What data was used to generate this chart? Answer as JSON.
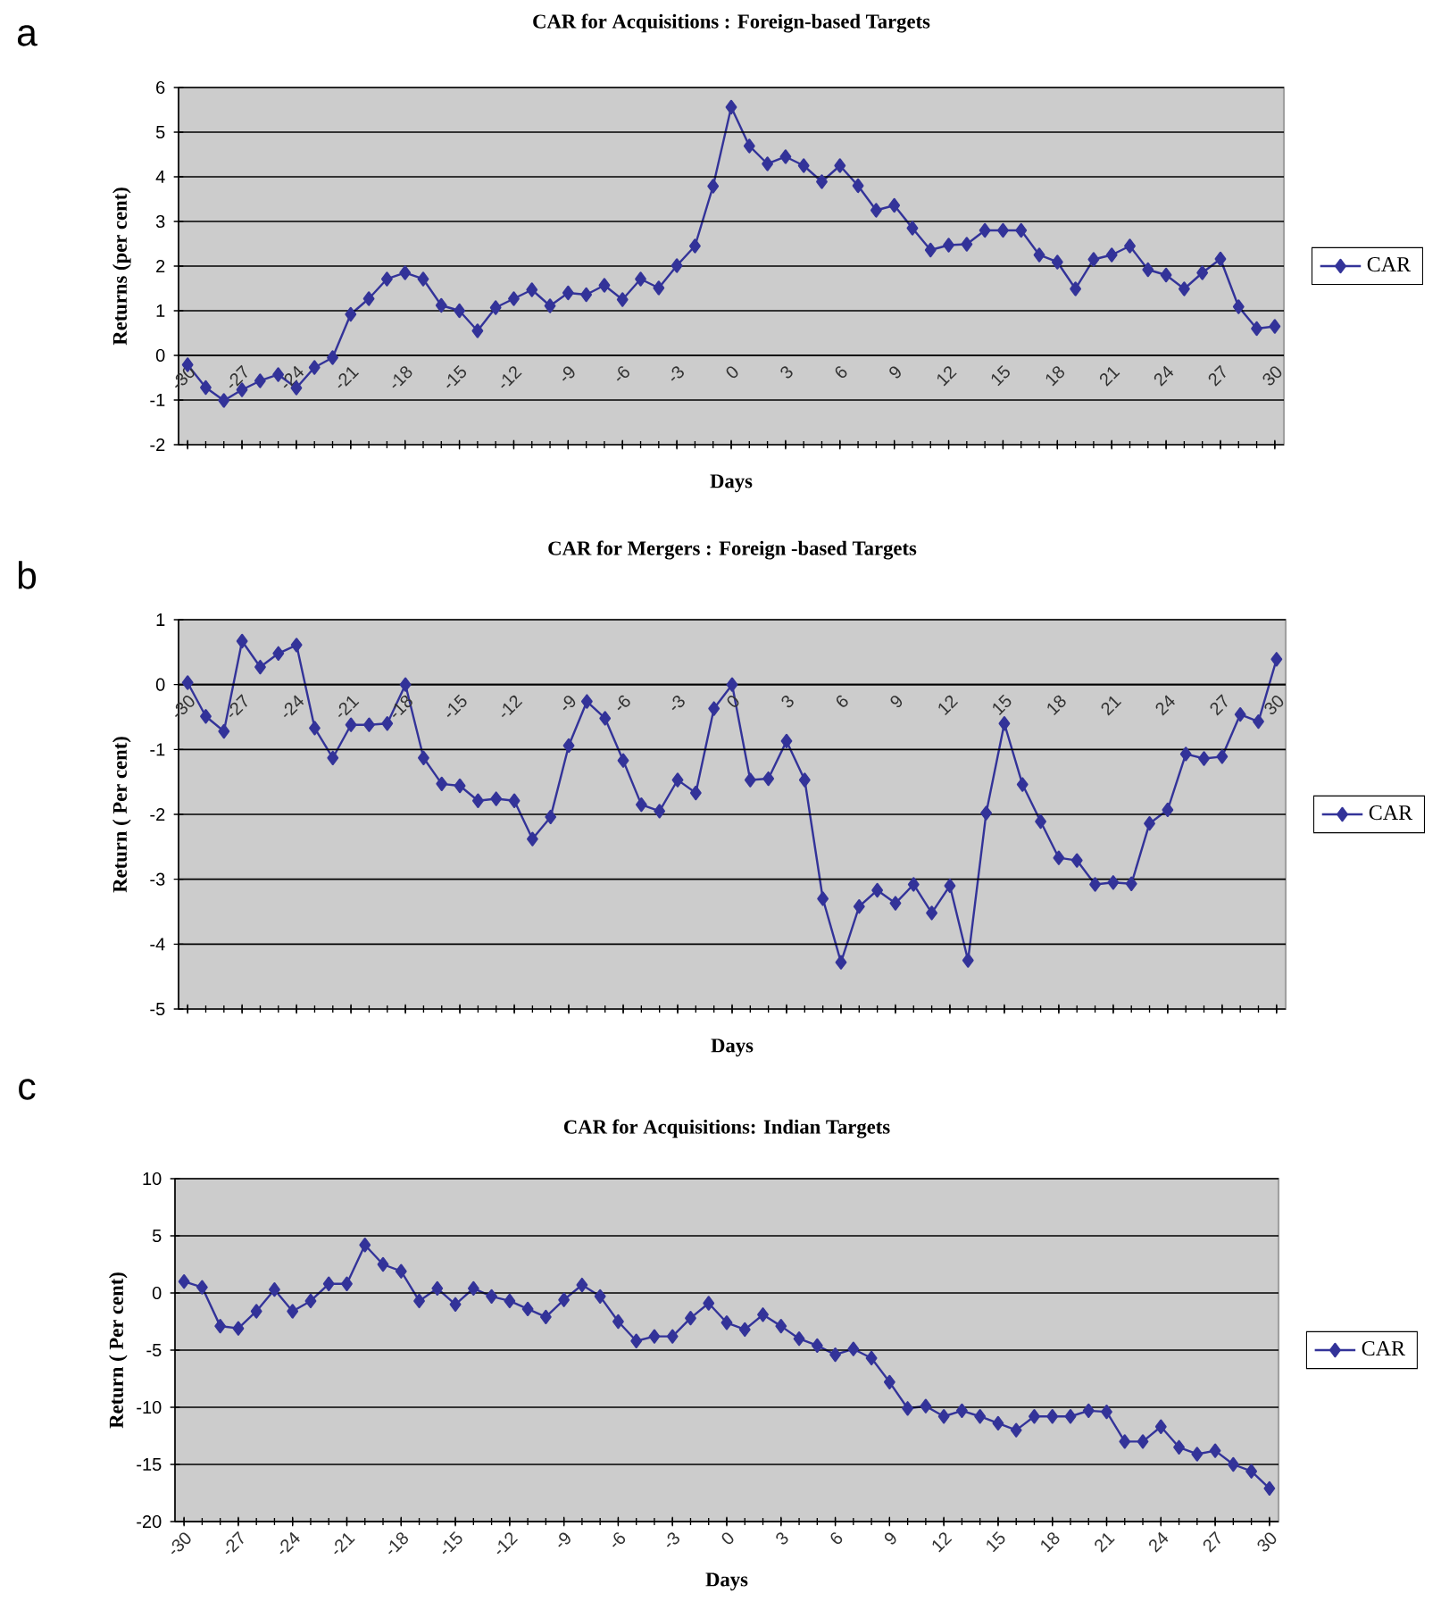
{
  "chart_data": [
    {
      "type": "line",
      "title": "CAR for Acquisitions : Foreign-based Targets",
      "xlabel": "Days",
      "ylabel": "Returns (per cent)",
      "annotations": [
        "a"
      ],
      "categories": [
        "-30",
        null,
        null,
        "-27",
        null,
        null,
        "-24",
        null,
        null,
        "-21",
        null,
        null,
        "-18",
        null,
        null,
        "-15",
        null,
        null,
        "-12",
        null,
        null,
        "-9",
        null,
        null,
        "-6",
        null,
        null,
        "-3",
        null,
        null,
        "0",
        null,
        null,
        "3",
        null,
        null,
        "6",
        null,
        null,
        "9",
        null,
        null,
        "12",
        null,
        null,
        "15",
        null,
        null,
        "18",
        null,
        null,
        "21",
        null,
        null,
        "24",
        null,
        null,
        "27",
        null,
        null,
        "30"
      ],
      "series": [
        {
          "name": "CAR",
          "color": "#333399",
          "values": [
            -0.21,
            -0.72,
            -1.01,
            -0.77,
            -0.57,
            -0.43,
            -0.73,
            -0.27,
            -0.05,
            0.92,
            1.27,
            1.71,
            1.85,
            1.71,
            1.12,
            1.0,
            0.55,
            1.07,
            1.27,
            1.47,
            1.11,
            1.4,
            1.36,
            1.57,
            1.25,
            1.71,
            1.51,
            2.01,
            2.45,
            3.79,
            5.56,
            4.69,
            4.29,
            4.45,
            4.25,
            3.89,
            4.25,
            3.8,
            3.25,
            3.36,
            2.85,
            2.36,
            2.47,
            2.49,
            2.8,
            2.8,
            2.8,
            2.25,
            2.09,
            1.49,
            2.15,
            2.25,
            2.45,
            1.92,
            1.8,
            1.49,
            1.85,
            2.16,
            1.09,
            0.6,
            0.65
          ]
        }
      ],
      "ylim": [
        -2,
        6
      ],
      "yticks": [
        -2,
        -1,
        0,
        1,
        2,
        3,
        4,
        5,
        6
      ],
      "grid": "y",
      "legend": "right",
      "marker": "diamond"
    },
    {
      "type": "line",
      "title": "CAR for  Mergers : Foreign -based Targets",
      "xlabel": "Days",
      "ylabel": "Return ( Per cent)",
      "annotations": [
        "b"
      ],
      "categories": [
        "-30",
        null,
        null,
        "-27",
        null,
        null,
        "-24",
        null,
        null,
        "-21",
        null,
        null,
        "-18",
        null,
        null,
        "-15",
        null,
        null,
        "-12",
        null,
        null,
        "-9",
        null,
        null,
        "-6",
        null,
        null,
        "-3",
        null,
        null,
        "0",
        null,
        null,
        "3",
        null,
        null,
        "6",
        null,
        null,
        "9",
        null,
        null,
        "12",
        null,
        null,
        "15",
        null,
        null,
        "18",
        null,
        null,
        "21",
        null,
        null,
        "24",
        null,
        null,
        "27",
        null,
        null,
        "30"
      ],
      "series": [
        {
          "name": "CAR",
          "color": "#333399",
          "values": [
            0.03,
            -0.49,
            -0.72,
            0.67,
            0.27,
            0.48,
            0.61,
            -0.67,
            -1.13,
            -0.62,
            -0.62,
            -0.6,
            0.0,
            -1.13,
            -1.53,
            -1.56,
            -1.79,
            -1.76,
            -1.79,
            -2.38,
            -2.04,
            -0.94,
            -0.26,
            -0.52,
            -1.17,
            -1.85,
            -1.95,
            -1.47,
            -1.67,
            -0.37,
            0.0,
            -1.47,
            -1.45,
            -0.87,
            -1.47,
            -3.3,
            -4.28,
            -3.42,
            -3.17,
            -3.37,
            -3.08,
            -3.52,
            -3.1,
            -4.25,
            -1.98,
            -0.6,
            -1.54,
            -2.11,
            -2.67,
            -2.71,
            -3.08,
            -3.05,
            -3.07,
            -2.14,
            -1.93,
            -1.07,
            -1.14,
            -1.11,
            -0.46,
            -0.57,
            0.39
          ]
        }
      ],
      "ylim": [
        -5,
        1
      ],
      "yticks": [
        -5,
        -4,
        -3,
        -2,
        -1,
        0,
        1
      ],
      "grid": "y",
      "legend": "right",
      "marker": "diamond"
    },
    {
      "type": "line",
      "title": "CAR for  Acquisitions: Indian Targets",
      "xlabel": "Days",
      "ylabel": "Return ( Per cent)",
      "annotations": [
        "c"
      ],
      "categories": [
        "-30",
        null,
        null,
        "-27",
        null,
        null,
        "-24",
        null,
        null,
        "-21",
        null,
        null,
        "-18",
        null,
        null,
        "-15",
        null,
        null,
        "-12",
        null,
        null,
        "-9",
        null,
        null,
        "-6",
        null,
        null,
        "-3",
        null,
        null,
        "0",
        null,
        null,
        "3",
        null,
        null,
        "6",
        null,
        null,
        "9",
        null,
        null,
        "12",
        null,
        null,
        "15",
        null,
        null,
        "18",
        null,
        null,
        "21",
        null,
        null,
        "24",
        null,
        null,
        "27",
        null,
        null,
        "30"
      ],
      "series": [
        {
          "name": "CAR",
          "color": "#333399",
          "values": [
            1.0,
            0.5,
            -2.9,
            -3.1,
            -1.6,
            0.3,
            -1.6,
            -0.7,
            0.8,
            0.8,
            4.2,
            2.5,
            1.9,
            -0.7,
            0.4,
            -1.0,
            0.4,
            -0.3,
            -0.7,
            -1.4,
            -2.1,
            -0.6,
            0.7,
            -0.3,
            -2.5,
            -4.2,
            -3.8,
            -3.8,
            -2.2,
            -0.9,
            -2.6,
            -3.2,
            -1.9,
            -2.9,
            -4.0,
            -4.6,
            -5.4,
            -4.9,
            -5.7,
            -7.8,
            -10.1,
            -9.9,
            -10.8,
            -10.3,
            -10.8,
            -11.4,
            -12.0,
            -10.8,
            -10.8,
            -10.8,
            -10.3,
            -10.4,
            -13.0,
            -13.0,
            -11.7,
            -13.5,
            -14.1,
            -13.8,
            -15.0,
            -15.6,
            -17.1
          ]
        }
      ],
      "ylim": [
        -20,
        10
      ],
      "yticks": [
        -20,
        -15,
        -10,
        -5,
        0,
        5,
        10
      ],
      "grid": "y",
      "legend": "right",
      "marker": "diamond"
    }
  ]
}
